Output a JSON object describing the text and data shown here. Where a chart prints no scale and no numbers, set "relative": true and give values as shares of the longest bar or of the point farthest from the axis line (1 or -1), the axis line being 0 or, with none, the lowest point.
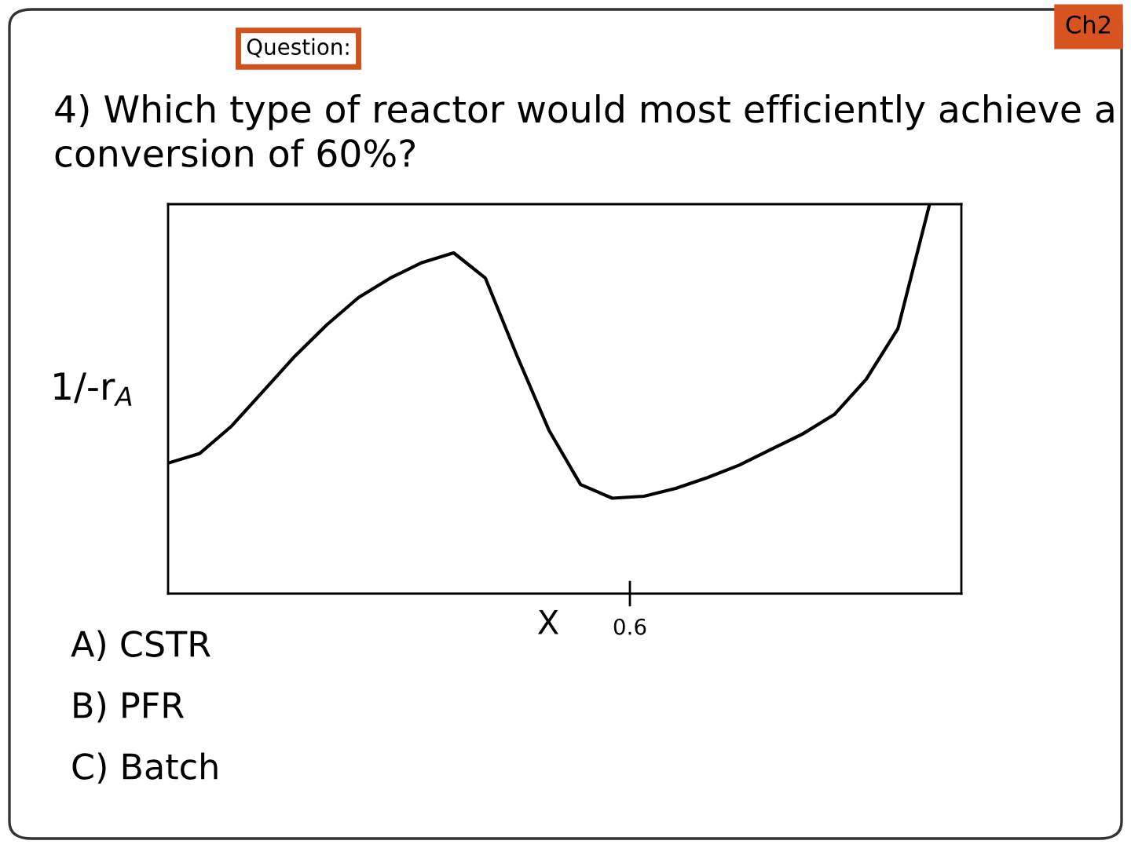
{
  "chart_data": {
    "type": "line",
    "title": "4) Which type of reactor would most efficiently achieve a conversion of 60%?",
    "xlabel": "X",
    "ylabel": "1/-r$_{A}$",
    "relative": true,
    "categories": [
      null,
      null,
      null,
      null,
      null,
      null,
      null,
      null,
      null,
      null,
      null,
      null,
      null,
      null,
      null,
      null,
      null,
      null,
      null,
      null,
      null,
      null,
      null,
      null,
      null,
      null
    ],
    "series": [
      {
        "color": "#000000",
        "values": [
          0.335,
          0.36,
          0.43,
          0.52,
          0.61,
          0.69,
          0.76,
          0.81,
          0.85,
          0.875,
          0.81,
          0.61,
          0.42,
          0.28,
          0.245,
          0.25,
          0.27,
          0.298,
          0.33,
          0.37,
          0.41,
          0.46,
          0.55,
          0.68,
          1.0,
          null
        ]
      }
    ],
    "marker": "none",
    "line_style": "solid",
    "grid": false,
    "legend": false,
    "annotations": [
      "Question:",
      "Ch2",
      "0.6",
      "A) CSTR",
      "B) PFR",
      "C) Batch"
    ]
  }
}
